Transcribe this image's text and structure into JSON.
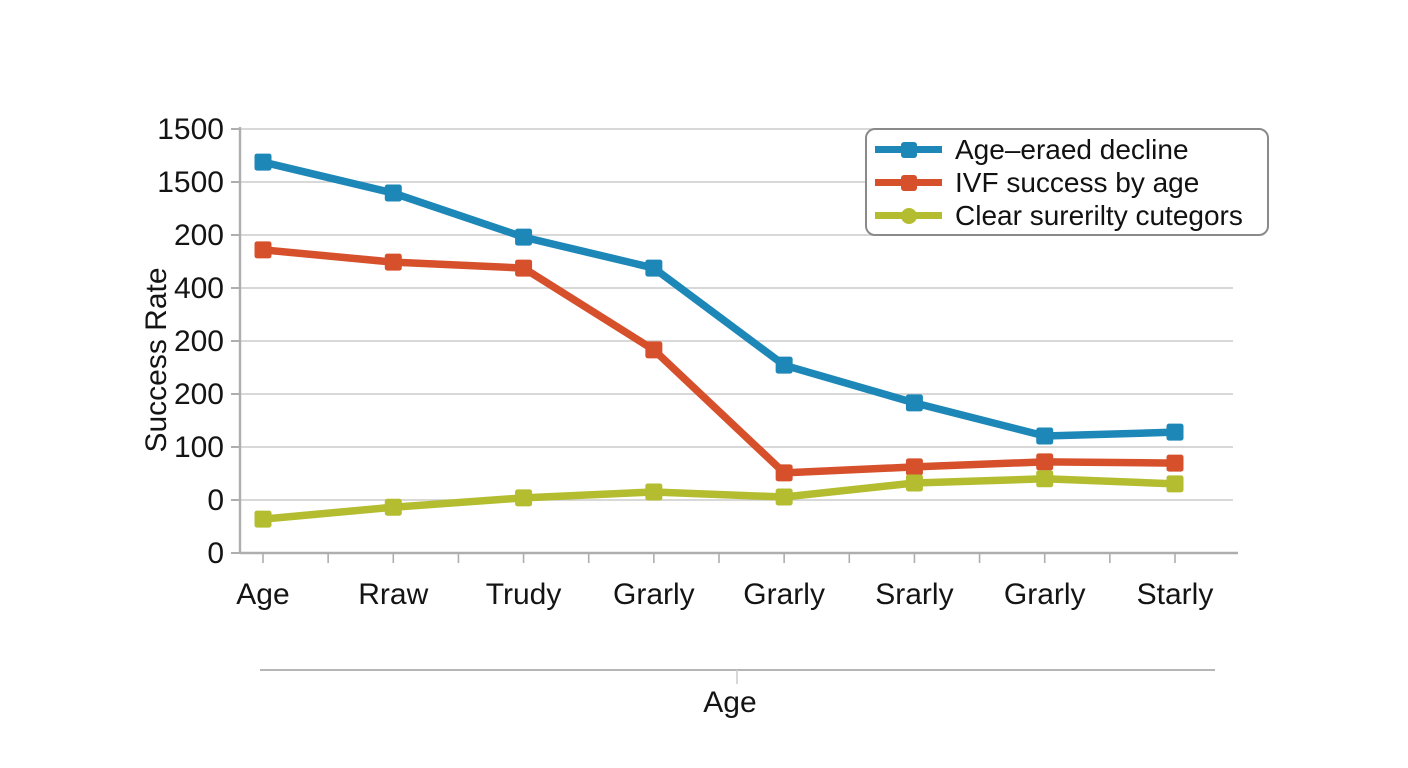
{
  "chart_data": {
    "type": "line",
    "title": "",
    "xlabel": "Age",
    "ylabel": "Success Rate",
    "categories": [
      "Age",
      "Rraw",
      "Trudy",
      "Grarly",
      "Grarly",
      "Srarly",
      "Grarly",
      "Starly"
    ],
    "y_tick_labels_top_to_bottom": [
      "1500",
      "1500",
      "200",
      "400",
      "200",
      "200",
      "100",
      "0",
      "0"
    ],
    "grid": true,
    "legend_position": "upper-right",
    "axis_color": "#aeaeae",
    "gridline_color": "#cbcbcb",
    "text_color": "#141414",
    "legend_border_color": "#8a8a8a",
    "series": [
      {
        "name": "Age–eraed decline",
        "color": "#1d87b8",
        "marker_plot": "square",
        "marker_legend": "square",
        "values_pct_of_axis": [
          92.2,
          84.9,
          74.5,
          67.2,
          44.3,
          35.4,
          27.6,
          28.5
        ]
      },
      {
        "name": "IVF success by age",
        "color": "#d7502c",
        "marker_plot": "square",
        "marker_legend": "square",
        "values_pct_of_axis": [
          71.5,
          68.6,
          67.2,
          47.9,
          18.9,
          20.3,
          21.5,
          21.2
        ]
      },
      {
        "name": "Clear surerilty cutegors",
        "color": "#b3bd2f",
        "marker_plot": "square",
        "marker_legend": "circle",
        "values_pct_of_axis": [
          8.0,
          10.8,
          13.0,
          14.4,
          13.2,
          16.5,
          17.5,
          16.3
        ]
      }
    ],
    "secondary_x_axis": {
      "label": "Age",
      "has_center_tick": true
    }
  }
}
